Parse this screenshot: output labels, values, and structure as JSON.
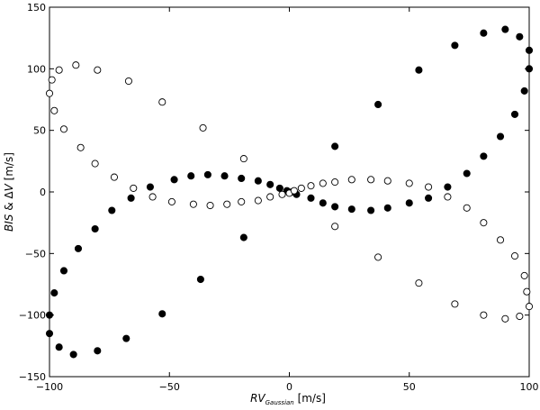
{
  "chart_data": {
    "type": "scatter",
    "title": "",
    "xlabel": "RV_Gaussian [m/s]",
    "ylabel": "BIS & ΔV [m/s]",
    "xlim": [
      -100,
      100
    ],
    "ylim": [
      -150,
      150
    ],
    "x_ticks": [
      -100,
      -50,
      0,
      50,
      100
    ],
    "y_ticks": [
      -150,
      -100,
      -50,
      0,
      50,
      100,
      150
    ],
    "grid": false,
    "legend": "none",
    "series": [
      {
        "marker": "filled-circle",
        "color": "#000000",
        "points": [
          [
            -100,
            -100
          ],
          [
            -100,
            -115
          ],
          [
            -98,
            -82
          ],
          [
            -96,
            -126
          ],
          [
            -94,
            -64
          ],
          [
            -90,
            -132
          ],
          [
            -88,
            -46
          ],
          [
            -81,
            -30
          ],
          [
            -80,
            -129
          ],
          [
            -74,
            -15
          ],
          [
            -68,
            -119
          ],
          [
            -66,
            -5
          ],
          [
            -58,
            4
          ],
          [
            -53,
            -99
          ],
          [
            -48,
            10
          ],
          [
            -41,
            13
          ],
          [
            -37,
            -71
          ],
          [
            -34,
            14
          ],
          [
            -27,
            13
          ],
          [
            -20,
            11
          ],
          [
            -19,
            -37
          ],
          [
            -13,
            9
          ],
          [
            -8,
            6
          ],
          [
            -4,
            3
          ],
          [
            -1,
            1
          ],
          [
            1,
            0
          ],
          [
            3,
            -2
          ],
          [
            9,
            -5
          ],
          [
            14,
            -9
          ],
          [
            19,
            -12
          ],
          [
            19,
            37
          ],
          [
            26,
            -14
          ],
          [
            34,
            -15
          ],
          [
            37,
            71
          ],
          [
            41,
            -13
          ],
          [
            50,
            -9
          ],
          [
            54,
            99
          ],
          [
            58,
            -5
          ],
          [
            66,
            4
          ],
          [
            69,
            119
          ],
          [
            74,
            15
          ],
          [
            81,
            29
          ],
          [
            81,
            129
          ],
          [
            88,
            45
          ],
          [
            90,
            132
          ],
          [
            94,
            63
          ],
          [
            96,
            126
          ],
          [
            98,
            82
          ],
          [
            100,
            100
          ],
          [
            100,
            115
          ]
        ]
      },
      {
        "marker": "open-circle",
        "color": "#000000",
        "points": [
          [
            -100,
            80
          ],
          [
            -99,
            91
          ],
          [
            -98,
            66
          ],
          [
            -96,
            99
          ],
          [
            -94,
            51
          ],
          [
            -89,
            103
          ],
          [
            -87,
            36
          ],
          [
            -81,
            23
          ],
          [
            -80,
            99
          ],
          [
            -73,
            12
          ],
          [
            -67,
            90
          ],
          [
            -65,
            3
          ],
          [
            -57,
            -4
          ],
          [
            -53,
            73
          ],
          [
            -49,
            -8
          ],
          [
            -40,
            -10
          ],
          [
            -36,
            52
          ],
          [
            -33,
            -11
          ],
          [
            -26,
            -10
          ],
          [
            -20,
            -8
          ],
          [
            -19,
            27
          ],
          [
            -13,
            -7
          ],
          [
            -8,
            -4
          ],
          [
            -3,
            -2
          ],
          [
            0,
            -1
          ],
          [
            2,
            1
          ],
          [
            5,
            3
          ],
          [
            9,
            5
          ],
          [
            14,
            7
          ],
          [
            19,
            8
          ],
          [
            19,
            -28
          ],
          [
            26,
            10
          ],
          [
            34,
            10
          ],
          [
            37,
            -53
          ],
          [
            41,
            9
          ],
          [
            50,
            7
          ],
          [
            54,
            -74
          ],
          [
            58,
            4
          ],
          [
            66,
            -4
          ],
          [
            69,
            -91
          ],
          [
            74,
            -13
          ],
          [
            81,
            -25
          ],
          [
            81,
            -100
          ],
          [
            88,
            -39
          ],
          [
            90,
            -103
          ],
          [
            94,
            -52
          ],
          [
            96,
            -101
          ],
          [
            98,
            -68
          ],
          [
            99,
            -81
          ],
          [
            100,
            -93
          ]
        ]
      }
    ]
  }
}
